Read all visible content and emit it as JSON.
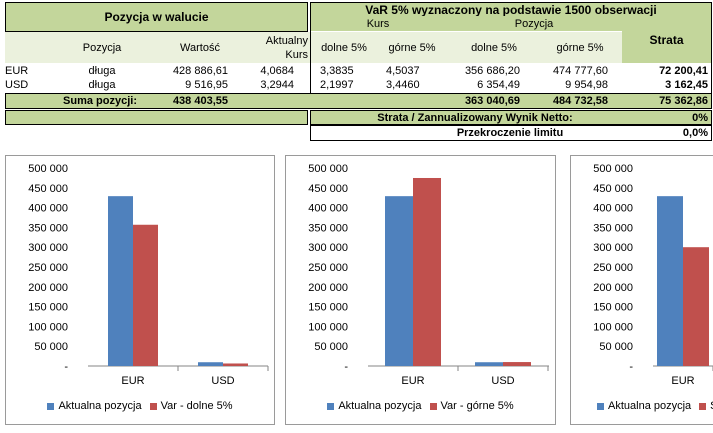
{
  "table": {
    "left_header": "Pozycja w walucie",
    "right_header": "VaR 5% wyznaczony na podstawie 1500 obserwacji",
    "kurs_header": "Kurs",
    "pozycja_header": "Pozycja",
    "strata_header": "Strata",
    "columns": {
      "pozycja": "Pozycja",
      "wartosc": "Wartość",
      "aktualny_kurs": [
        "Aktualny",
        "Kurs"
      ],
      "kurs_dolne": "dolne 5%",
      "kurs_gorne": "górne 5%",
      "poz_dolne": "dolne 5%",
      "poz_gorne": "górne 5%"
    },
    "rows": [
      {
        "currency": "EUR",
        "pozycja": "długa",
        "wartosc": "428 886,61",
        "kurs": "4,0684",
        "kurs_dolne": "3,3835",
        "kurs_gorne": "4,5037",
        "poz_dolne": "356 686,20",
        "poz_gorne": "474 777,60",
        "strata": "72 200,41"
      },
      {
        "currency": "USD",
        "pozycja": "długa",
        "wartosc": "9 516,95",
        "kurs": "3,2944",
        "kurs_dolne": "2,1997",
        "kurs_gorne": "3,4460",
        "poz_dolne": "6 354,49",
        "poz_gorne": "9 954,98",
        "strata": "3 162,45"
      }
    ],
    "sum_label": "Suma pozycji:",
    "sum_wartosc": "438 403,55",
    "sum_poz_dolne": "363 040,69",
    "sum_poz_gorne": "484 732,58",
    "sum_strata": "75 362,86",
    "ratio_label": "Strata / Zannualizowany Wynik Netto:",
    "ratio_value": "0%",
    "limit_label": "Przekroczenie limitu",
    "limit_value": "0,0%"
  },
  "colors": {
    "blue": "#4f81bd",
    "red": "#c0504d",
    "green_dark": "#c3d69b",
    "green_light": "#ebf1dd"
  },
  "chart_data": [
    {
      "type": "bar",
      "categories": [
        "EUR",
        "USD"
      ],
      "ylim": [
        0,
        500000
      ],
      "yticks": [
        "-",
        "50 000",
        "100 000",
        "150 000",
        "200 000",
        "250 000",
        "300 000",
        "350 000",
        "400 000",
        "450 000",
        "500 000"
      ],
      "series": [
        {
          "name": "Aktualna pozycja",
          "values": [
            428886.61,
            9516.95
          ]
        },
        {
          "name": "Var - dolne 5%",
          "values": [
            356686.2,
            6354.49
          ]
        }
      ],
      "legend": "bottom"
    },
    {
      "type": "bar",
      "categories": [
        "EUR",
        "USD"
      ],
      "ylim": [
        0,
        500000
      ],
      "yticks": [
        "-",
        "50 000",
        "100 000",
        "150 000",
        "200 000",
        "250 000",
        "300 000",
        "350 000",
        "400 000",
        "450 000",
        "500 000"
      ],
      "series": [
        {
          "name": "Aktualna pozycja",
          "values": [
            428886.61,
            9516.95
          ]
        },
        {
          "name": "Var - górne 5%",
          "values": [
            474777.6,
            9954.98
          ]
        }
      ],
      "legend": "bottom"
    },
    {
      "type": "bar",
      "categories": [
        "EUR"
      ],
      "ylim": [
        0,
        500000
      ],
      "yticks": [
        "-",
        "50 000",
        "100 000",
        "150 000",
        "200 000",
        "250 000",
        "300 000",
        "350 000",
        "400 000",
        "450 000",
        "500 000"
      ],
      "series": [
        {
          "name": "Aktualna pozycja",
          "values": [
            428886.61
          ]
        },
        {
          "name": "Sp",
          "values": [
            300000
          ]
        }
      ],
      "legend": "bottom"
    }
  ]
}
